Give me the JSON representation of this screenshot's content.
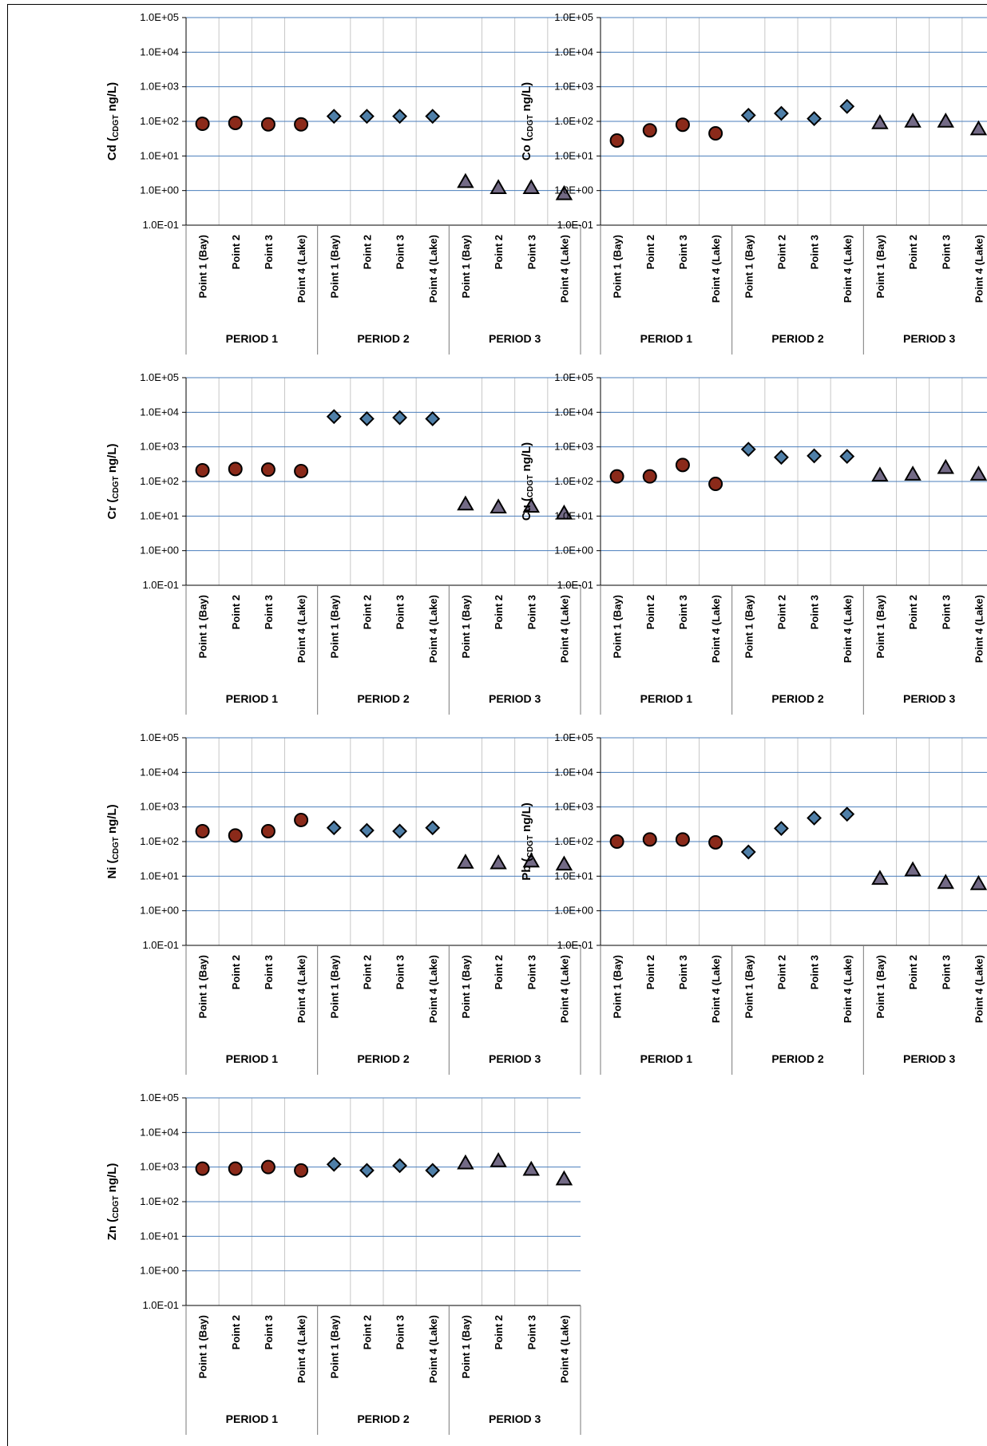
{
  "chart_data": [
    {
      "type": "scatter",
      "ylabel": {
        "element": "Cd",
        "sub": "CDGT",
        "unit": "ng/L"
      },
      "yscale": "log",
      "ylim": [
        0.1,
        100000
      ],
      "yticks": [
        "1.0E-01",
        "1.0E+00",
        "1.0E+01",
        "1.0E+02",
        "1.0E+03",
        "1.0E+04",
        "1.0E+05"
      ],
      "categories": [
        "Point 1 (Bay)",
        "Point 2",
        "Point 3",
        "Point 4 (Lake)"
      ],
      "groups": [
        "PERIOD 1",
        "PERIOD 2",
        "PERIOD 3"
      ],
      "series": [
        {
          "period": "PERIOD 1",
          "marker": "circle",
          "color": "#8B2A1A",
          "values": [
            85,
            90,
            82,
            82
          ]
        },
        {
          "period": "PERIOD 2",
          "marker": "diamond",
          "color": "#4F7FA8",
          "values": [
            140,
            140,
            140,
            140
          ]
        },
        {
          "period": "PERIOD 3",
          "marker": "triangle",
          "color": "#736A86",
          "values": [
            1.8,
            1.2,
            1.2,
            0.8
          ]
        }
      ]
    },
    {
      "type": "scatter",
      "ylabel": {
        "element": "Co",
        "sub": "CDGT",
        "unit": "ng/L"
      },
      "yscale": "log",
      "ylim": [
        0.1,
        100000
      ],
      "yticks": [
        "1.0E-01",
        "1.0E+00",
        "1.0E+01",
        "1.0E+02",
        "1.0E+03",
        "1.0E+04",
        "1.0E+05"
      ],
      "categories": [
        "Point 1 (Bay)",
        "Point 2",
        "Point 3",
        "Point 4 (Lake)"
      ],
      "groups": [
        "PERIOD 1",
        "PERIOD 2",
        "PERIOD 3"
      ],
      "series": [
        {
          "period": "PERIOD 1",
          "marker": "circle",
          "color": "#8B2A1A",
          "values": [
            28,
            55,
            80,
            45
          ]
        },
        {
          "period": "PERIOD 2",
          "marker": "diamond",
          "color": "#4F7FA8",
          "values": [
            150,
            170,
            120,
            270
          ]
        },
        {
          "period": "PERIOD 3",
          "marker": "triangle",
          "color": "#736A86",
          "values": [
            90,
            100,
            100,
            60
          ]
        }
      ]
    },
    {
      "type": "scatter",
      "ylabel": {
        "element": "Cr",
        "sub": "CDGT",
        "unit": "ng/L"
      },
      "yscale": "log",
      "ylim": [
        0.1,
        100000
      ],
      "yticks": [
        "1.0E-01",
        "1.0E+00",
        "1.0E+01",
        "1.0E+02",
        "1.0E+03",
        "1.0E+04",
        "1.0E+05"
      ],
      "categories": [
        "Point 1 (Bay)",
        "Point 2",
        "Point 3",
        "Point 4 (Lake)"
      ],
      "groups": [
        "PERIOD 1",
        "PERIOD 2",
        "PERIOD 3"
      ],
      "series": [
        {
          "period": "PERIOD 1",
          "marker": "circle",
          "color": "#8B2A1A",
          "values": [
            210,
            230,
            220,
            200
          ]
        },
        {
          "period": "PERIOD 2",
          "marker": "diamond",
          "color": "#4F7FA8",
          "values": [
            7500,
            6500,
            7000,
            6500
          ]
        },
        {
          "period": "PERIOD 3",
          "marker": "triangle",
          "color": "#736A86",
          "values": [
            22,
            18,
            19,
            12
          ]
        }
      ]
    },
    {
      "type": "scatter",
      "ylabel": {
        "element": "Cu",
        "sub": "CDGT",
        "unit": "ng/L"
      },
      "yscale": "log",
      "ylim": [
        0.1,
        100000
      ],
      "yticks": [
        "1.0E-01",
        "1.0E+00",
        "1.0E+01",
        "1.0E+02",
        "1.0E+03",
        "1.0E+04",
        "1.0E+05"
      ],
      "categories": [
        "Point 1 (Bay)",
        "Point 2",
        "Point 3",
        "Point 4 (Lake)"
      ],
      "groups": [
        "PERIOD 1",
        "PERIOD 2",
        "PERIOD 3"
      ],
      "series": [
        {
          "period": "PERIOD 1",
          "marker": "circle",
          "color": "#8B2A1A",
          "values": [
            140,
            140,
            300,
            85
          ]
        },
        {
          "period": "PERIOD 2",
          "marker": "diamond",
          "color": "#4F7FA8",
          "values": [
            850,
            500,
            550,
            530
          ]
        },
        {
          "period": "PERIOD 3",
          "marker": "triangle",
          "color": "#736A86",
          "values": [
            150,
            160,
            250,
            160
          ]
        }
      ]
    },
    {
      "type": "scatter",
      "ylabel": {
        "element": "Ni",
        "sub": "CDGT",
        "unit": "ng/L"
      },
      "yscale": "log",
      "ylim": [
        0.1,
        100000
      ],
      "yticks": [
        "1.0E-01",
        "1.0E+00",
        "1.0E+01",
        "1.0E+02",
        "1.0E+03",
        "1.0E+04",
        "1.0E+05"
      ],
      "categories": [
        "Point 1 (Bay)",
        "Point 2",
        "Point 3",
        "Point 4 (Lake)"
      ],
      "groups": [
        "PERIOD 1",
        "PERIOD 2",
        "PERIOD 3"
      ],
      "series": [
        {
          "period": "PERIOD 1",
          "marker": "circle",
          "color": "#8B2A1A",
          "values": [
            200,
            150,
            200,
            420
          ]
        },
        {
          "period": "PERIOD 2",
          "marker": "diamond",
          "color": "#4F7FA8",
          "values": [
            250,
            210,
            200,
            250
          ]
        },
        {
          "period": "PERIOD 3",
          "marker": "triangle",
          "color": "#736A86",
          "values": [
            25,
            24,
            27,
            22
          ]
        }
      ]
    },
    {
      "type": "scatter",
      "ylabel": {
        "element": "Pb",
        "sub": "CDGT",
        "unit": "ng/L"
      },
      "yscale": "log",
      "ylim": [
        0.1,
        100000
      ],
      "yticks": [
        "1.0E-01",
        "1.0E+00",
        "1.0E+01",
        "1.0E+02",
        "1.0E+03",
        "1.0E+04",
        "1.0E+05"
      ],
      "categories": [
        "Point 1 (Bay)",
        "Point 2",
        "Point 3",
        "Point 4 (Lake)"
      ],
      "groups": [
        "PERIOD 1",
        "PERIOD 2",
        "PERIOD 3"
      ],
      "series": [
        {
          "period": "PERIOD 1",
          "marker": "circle",
          "color": "#8B2A1A",
          "values": [
            100,
            115,
            115,
            95
          ]
        },
        {
          "period": "PERIOD 2",
          "marker": "diamond",
          "color": "#4F7FA8",
          "values": [
            50,
            240,
            480,
            620
          ]
        },
        {
          "period": "PERIOD 3",
          "marker": "triangle",
          "color": "#736A86",
          "values": [
            8.5,
            15,
            6.5,
            6
          ]
        }
      ]
    },
    {
      "type": "scatter",
      "ylabel": {
        "element": "Zn",
        "sub": "CDGT",
        "unit": "ng/L"
      },
      "yscale": "log",
      "ylim": [
        0.1,
        100000
      ],
      "yticks": [
        "1.0E-01",
        "1.0E+00",
        "1.0E+01",
        "1.0E+02",
        "1.0E+03",
        "1.0E+04",
        "1.0E+05"
      ],
      "categories": [
        "Point 1 (Bay)",
        "Point 2",
        "Point 3",
        "Point 4 (Lake)"
      ],
      "groups": [
        "PERIOD 1",
        "PERIOD 2",
        "PERIOD 3"
      ],
      "series": [
        {
          "period": "PERIOD 1",
          "marker": "circle",
          "color": "#8B2A1A",
          "values": [
            900,
            900,
            1000,
            800
          ]
        },
        {
          "period": "PERIOD 2",
          "marker": "diamond",
          "color": "#4F7FA8",
          "values": [
            1200,
            800,
            1100,
            800
          ]
        },
        {
          "period": "PERIOD 3",
          "marker": "triangle",
          "color": "#736A86",
          "values": [
            1300,
            1500,
            850,
            450
          ]
        }
      ]
    }
  ]
}
